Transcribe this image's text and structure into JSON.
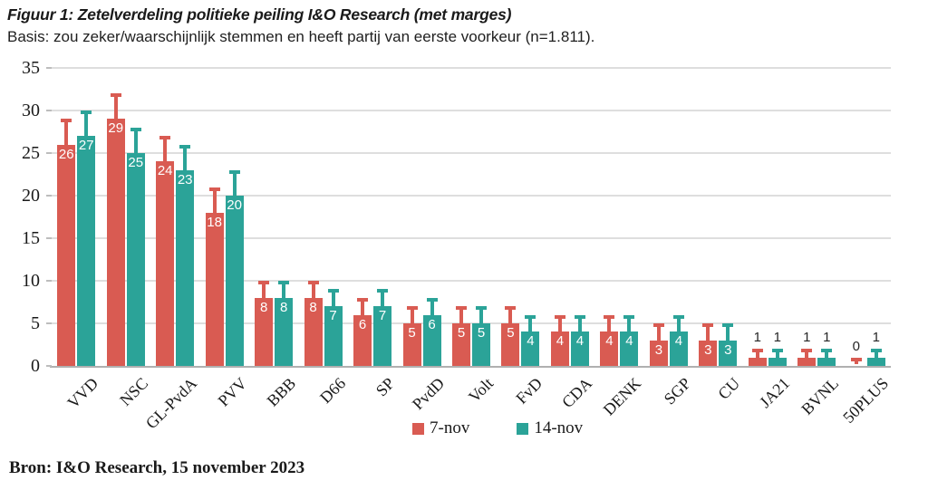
{
  "header": {
    "title": "Figuur 1: Zetelverdeling politieke peiling I&O Research (met marges)",
    "subtitle": "Basis: zou zeker/waarschijnlijk stemmen en heeft partij van eerste voorkeur (n=1.811)."
  },
  "chart_data": {
    "type": "bar",
    "title": "Figuur 1: Zetelverdeling politieke peiling I&O Research (met marges)",
    "subtitle": "Basis: zou zeker/waarschijnlijk stemmen en heeft partij van eerste voorkeur (n=1.811).",
    "categories": [
      "VVD",
      "NSC",
      "GL-PvdA",
      "PVV",
      "BBB",
      "D66",
      "SP",
      "PvdD",
      "Volt",
      "FvD",
      "CDA",
      "DENK",
      "SGP",
      "CU",
      "JA21",
      "BVNL",
      "50PLUS"
    ],
    "series": [
      {
        "name": "7-nov",
        "color": "#d95b52",
        "values": [
          26,
          29,
          24,
          18,
          8,
          8,
          6,
          5,
          5,
          5,
          4,
          4,
          3,
          3,
          1,
          1,
          0
        ],
        "error_top": [
          29,
          32,
          27,
          21,
          10,
          10,
          8,
          7,
          7,
          7,
          6,
          6,
          5,
          5,
          2,
          2,
          1
        ]
      },
      {
        "name": "14-nov",
        "color": "#2ba398",
        "values": [
          27,
          25,
          23,
          20,
          8,
          7,
          7,
          6,
          5,
          4,
          4,
          4,
          4,
          3,
          1,
          1,
          1
        ],
        "error_top": [
          30,
          28,
          26,
          23,
          10,
          9,
          9,
          8,
          7,
          6,
          6,
          6,
          6,
          5,
          2,
          2,
          2
        ]
      }
    ],
    "ylim": [
      0,
      35
    ],
    "yticks": [
      0,
      5,
      10,
      15,
      20,
      25,
      30,
      35
    ],
    "grid": "horizontal",
    "legend_position": "bottom-center",
    "value_label_rule": "white inside bar when value >= 3, black above error bar otherwise",
    "error_bars": "upper whiskers, same color as series",
    "colors": {
      "grid": "#dedede",
      "axis": "#b0b0b0",
      "text": "#1a1a1a",
      "value_label_inside": "#ffffff",
      "value_label_outside": "#262626"
    }
  },
  "footer": {
    "source": "Bron: I&O Research, 15 november 2023"
  }
}
